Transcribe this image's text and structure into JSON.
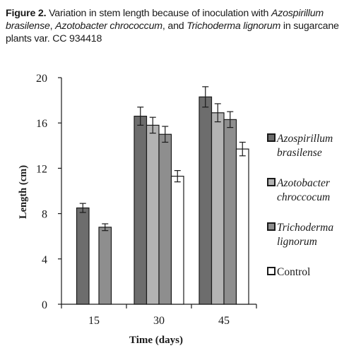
{
  "caption": {
    "label": "Figure 2.",
    "part1": " Variation in stem length because of inoculation with ",
    "organism1": "Azospirillum brasilense",
    "sep1": ", ",
    "organism2": "Azotobacter chrococcum",
    "sep2": ", and  ",
    "organism3": "Trichoderma lignorum",
    "part2": " in sugarcane plants var. CC 934418"
  },
  "chart_data": {
    "type": "bar",
    "xlabel": "Time (days)",
    "ylabel": "Length (cm)",
    "ylim": [
      0,
      20
    ],
    "yticks": [
      0,
      4,
      8,
      12,
      16,
      20
    ],
    "categories": [
      "15",
      "30",
      "45"
    ],
    "legend_position": "right",
    "error_bars": true,
    "series": [
      {
        "name": "Azospirillum brasilense",
        "legend_lines": [
          "Azospirillum",
          "brasilense"
        ],
        "color": "#6d6d6d",
        "values": [
          8.5,
          16.6,
          18.3
        ],
        "errors": [
          0.4,
          0.8,
          0.9
        ]
      },
      {
        "name": "Azotobacter chroccocum",
        "legend_lines": [
          "Azotobacter",
          "chroccocum"
        ],
        "color": "#b3b3b3",
        "values": [
          null,
          15.8,
          16.9
        ],
        "errors": [
          null,
          0.7,
          0.8
        ]
      },
      {
        "name": "Trichoderma lignorum",
        "legend_lines": [
          "Trichoderma",
          "lignorum"
        ],
        "color": "#8e8e8e",
        "values": [
          6.8,
          15.0,
          16.3
        ],
        "errors": [
          0.3,
          0.7,
          0.7
        ]
      },
      {
        "name": "Control",
        "legend_lines": [
          "Control"
        ],
        "color": "#ffffff",
        "values": [
          null,
          11.3,
          13.7
        ],
        "errors": [
          null,
          0.5,
          0.6
        ]
      }
    ]
  }
}
